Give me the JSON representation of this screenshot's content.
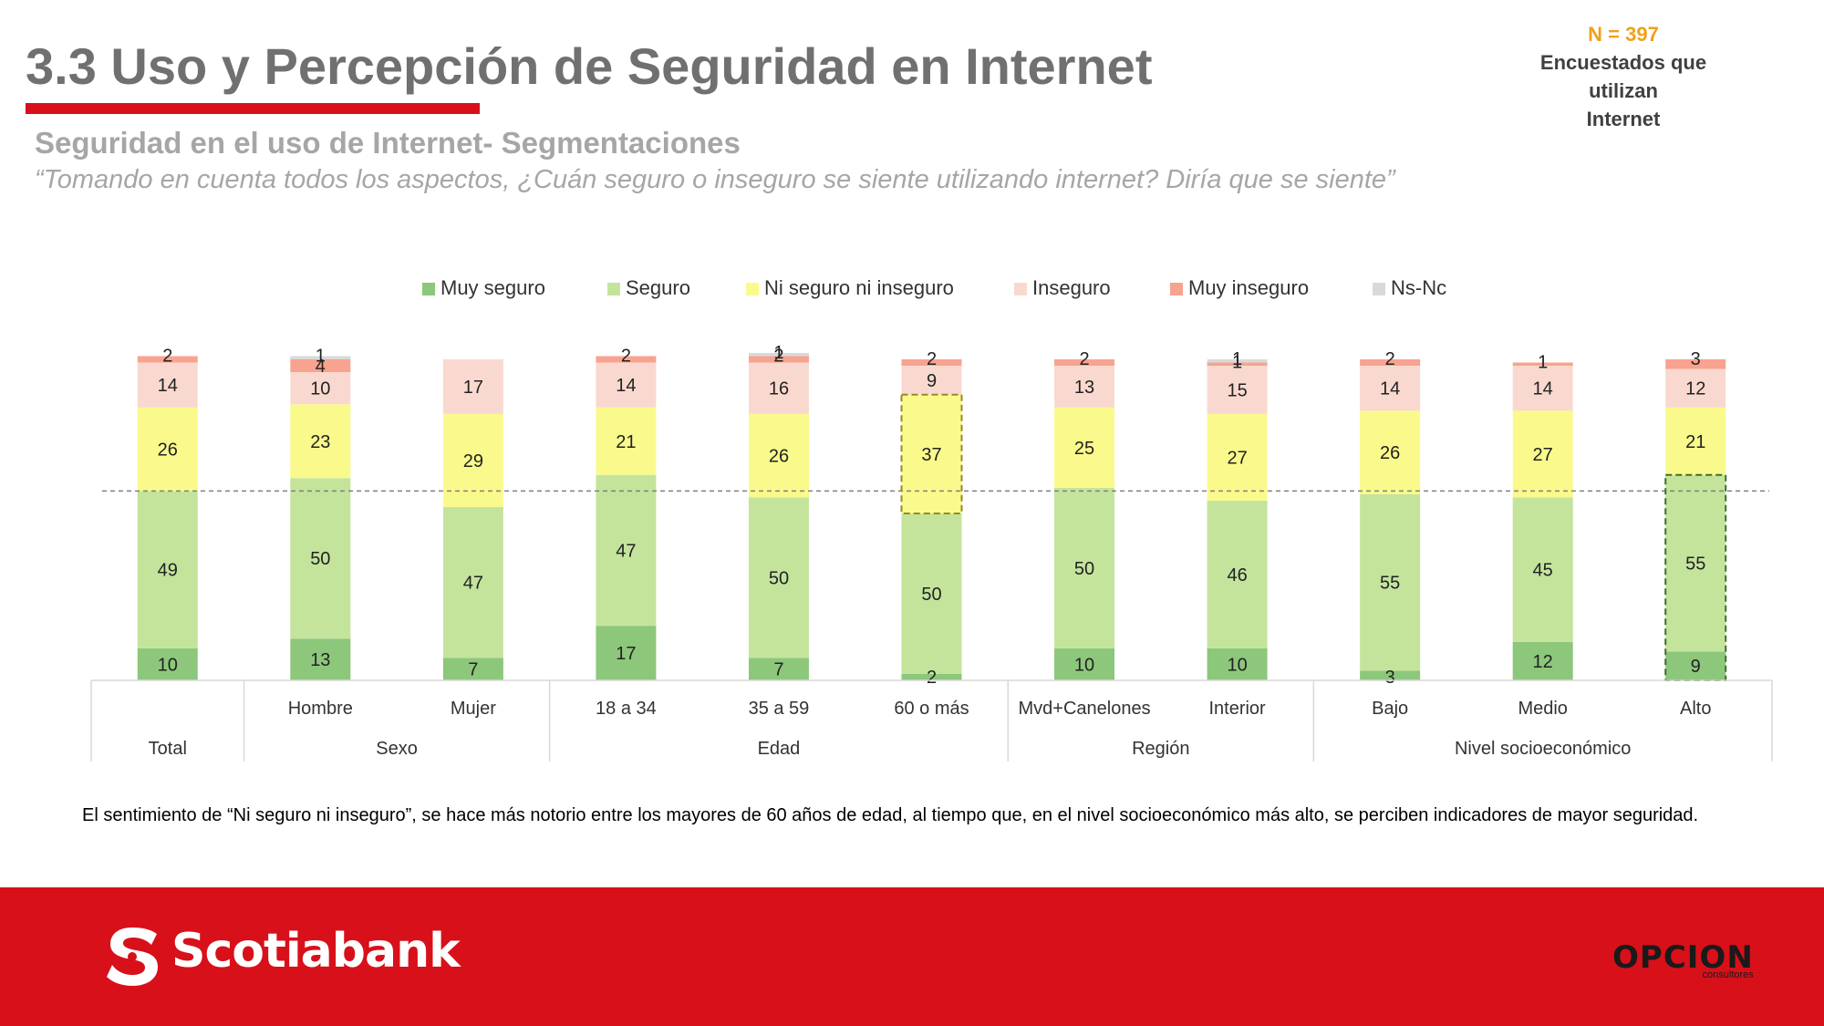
{
  "header": {
    "title": "3.3 Uso y Percepción de Seguridad en Internet",
    "sample_size": "N = 397",
    "sample_desc_line1": "Encuestados que utilizan",
    "sample_desc_line2": "Internet",
    "subtitle": "Seguridad en el uso de Internet- Segmentaciones",
    "question": "“Tomando en cuenta todos los aspectos, ¿Cuán seguro o inseguro se siente utilizando internet? Diría que se siente”"
  },
  "chart_data": {
    "type": "bar",
    "stacked": true,
    "unit": "%",
    "legend_position": "top",
    "categories": [
      "Total",
      "Hombre",
      "Mujer",
      "18 a 34",
      "35 a 59",
      "60 o más",
      "Mvd+Canelones",
      "Interior",
      "Bajo",
      "Medio",
      "Alto"
    ],
    "category_labels": [
      "",
      "Hombre",
      "Mujer",
      "18 a 34",
      "35 a 59",
      "60 o más",
      "Mvd+Canelones",
      "Interior",
      "Bajo",
      "Medio",
      "Alto"
    ],
    "groups": [
      {
        "label": "Total",
        "count": 1
      },
      {
        "label": "Sexo",
        "count": 2
      },
      {
        "label": "Edad",
        "count": 3
      },
      {
        "label": "Región",
        "count": 2
      },
      {
        "label": "Nivel socioeconómico",
        "count": 3
      }
    ],
    "series": [
      {
        "name": "Muy seguro",
        "color": "#8dc77b",
        "values": [
          10,
          13,
          7,
          17,
          7,
          2,
          10,
          10,
          3,
          12,
          9
        ]
      },
      {
        "name": "Seguro",
        "color": "#c4e49c",
        "values": [
          49,
          50,
          47,
          47,
          50,
          50,
          50,
          46,
          55,
          45,
          55
        ]
      },
      {
        "name": "Ni seguro ni inseguro",
        "color": "#fafa8c",
        "values": [
          26,
          23,
          29,
          21,
          26,
          37,
          25,
          27,
          26,
          27,
          21
        ]
      },
      {
        "name": "Inseguro",
        "color": "#f9d9cf",
        "values": [
          14,
          10,
          17,
          14,
          16,
          9,
          13,
          15,
          14,
          14,
          12
        ]
      },
      {
        "name": "Muy inseguro",
        "color": "#f7a38f",
        "values": [
          2,
          4,
          0,
          2,
          2,
          2,
          2,
          1,
          2,
          1,
          3
        ]
      },
      {
        "name": "Ns-Nc",
        "color": "#d9d9d9",
        "values": [
          0,
          1,
          0,
          0,
          1,
          0,
          0,
          1,
          0,
          0,
          0
        ]
      }
    ],
    "reference_line": 59,
    "highlights": [
      {
        "category": "60 o más",
        "series": "Ni seguro ni inseguro"
      },
      {
        "category": "Alto",
        "series": "Muy seguro+Seguro"
      }
    ]
  },
  "note": "El sentimiento de “Ni seguro ni inseguro”, se hace más notorio entre los mayores de 60 años de edad, al tiempo que, en el nivel socioeconómico más alto, se perciben indicadores de mayor seguridad.",
  "footer": {
    "bank_name": "Scotiabank",
    "consultant_name": "OPCION",
    "consultant_sub": "consultores",
    "brand_color": "#d8101a"
  }
}
